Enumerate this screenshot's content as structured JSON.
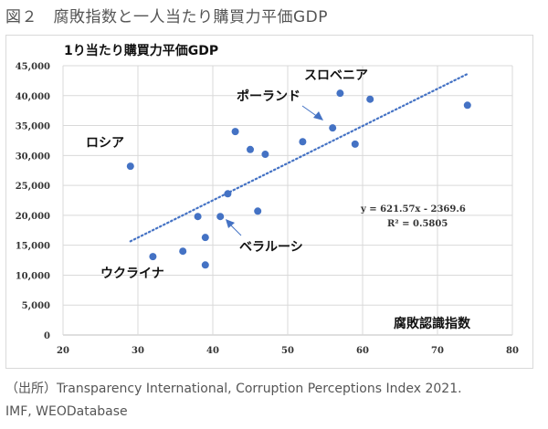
{
  "figure": {
    "title": "図２　腐敗指数と一人当たり購買力平価GDP",
    "source_line1": "（出所）Transparency International, Corruption Perceptions Index 2021.",
    "source_line2": "IMF, WEODatabase"
  },
  "chart_data": {
    "type": "scatter",
    "title": "1り当たり購買力平価GDP",
    "xlabel": "腐敗認識指数",
    "ylabel": "1り当たり購買力平価GDP",
    "xlim": [
      20,
      80
    ],
    "ylim": [
      0,
      45000
    ],
    "x_ticks": [
      "20",
      "30",
      "40",
      "50",
      "60",
      "70",
      "80"
    ],
    "y_ticks": [
      "0",
      "5,000",
      "10,000",
      "15,000",
      "20,000",
      "25,000",
      "30,000",
      "35,000",
      "40,000",
      "45,000"
    ],
    "grid": true,
    "marker_color": "#4472c4",
    "points": [
      {
        "x": 29,
        "y": 28200
      },
      {
        "x": 32,
        "y": 13100
      },
      {
        "x": 36,
        "y": 14000
      },
      {
        "x": 38,
        "y": 19800
      },
      {
        "x": 39,
        "y": 16300
      },
      {
        "x": 39,
        "y": 11700
      },
      {
        "x": 41,
        "y": 19800
      },
      {
        "x": 42,
        "y": 23600
      },
      {
        "x": 43,
        "y": 34000
      },
      {
        "x": 45,
        "y": 31000
      },
      {
        "x": 46,
        "y": 20700
      },
      {
        "x": 47,
        "y": 30200
      },
      {
        "x": 52,
        "y": 32300
      },
      {
        "x": 56,
        "y": 34600
      },
      {
        "x": 57,
        "y": 40400
      },
      {
        "x": 59,
        "y": 31900
      },
      {
        "x": 61,
        "y": 39400
      },
      {
        "x": 74,
        "y": 38400
      }
    ],
    "trendline": {
      "slope": 621.57,
      "intercept": -2369.6,
      "x_range": [
        29,
        74
      ],
      "equation": "y = 621.57x  - 2369.6",
      "r2": "R² = 0.5805"
    },
    "annotations": [
      {
        "text": "スロベニア",
        "x": 57,
        "y": 40400
      },
      {
        "text": "ポーランド",
        "x": 56,
        "y": 34600
      },
      {
        "text": "ロシア",
        "x": 29,
        "y": 28200
      },
      {
        "text": "ベラルーシ",
        "x": 41,
        "y": 19800
      },
      {
        "text": "ウクライナ",
        "x": 32,
        "y": 13100
      }
    ]
  }
}
